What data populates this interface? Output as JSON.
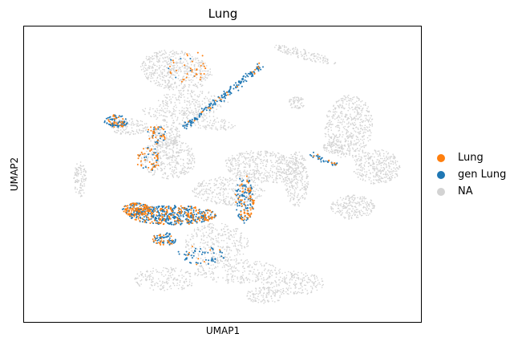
{
  "chart_data": {
    "type": "scatter",
    "title": "Lung",
    "xlabel": "UMAP1",
    "ylabel": "UMAP2",
    "xlim": [
      -10,
      10
    ],
    "ylim": [
      -8,
      8
    ],
    "grid": false,
    "legend_placement": "right",
    "series": [
      {
        "name": "NA",
        "color": "#d3d3d3"
      },
      {
        "name": "gen Lung",
        "color": "#1f77b4"
      },
      {
        "name": "Lung",
        "color": "#ff7f0e"
      }
    ]
  },
  "legend": {
    "items": [
      {
        "label": "Lung",
        "color": "#ff7f0e"
      },
      {
        "label": "gen Lung",
        "color": "#1f77b4"
      },
      {
        "label": "NA",
        "color": "#d3d3d3"
      }
    ]
  }
}
